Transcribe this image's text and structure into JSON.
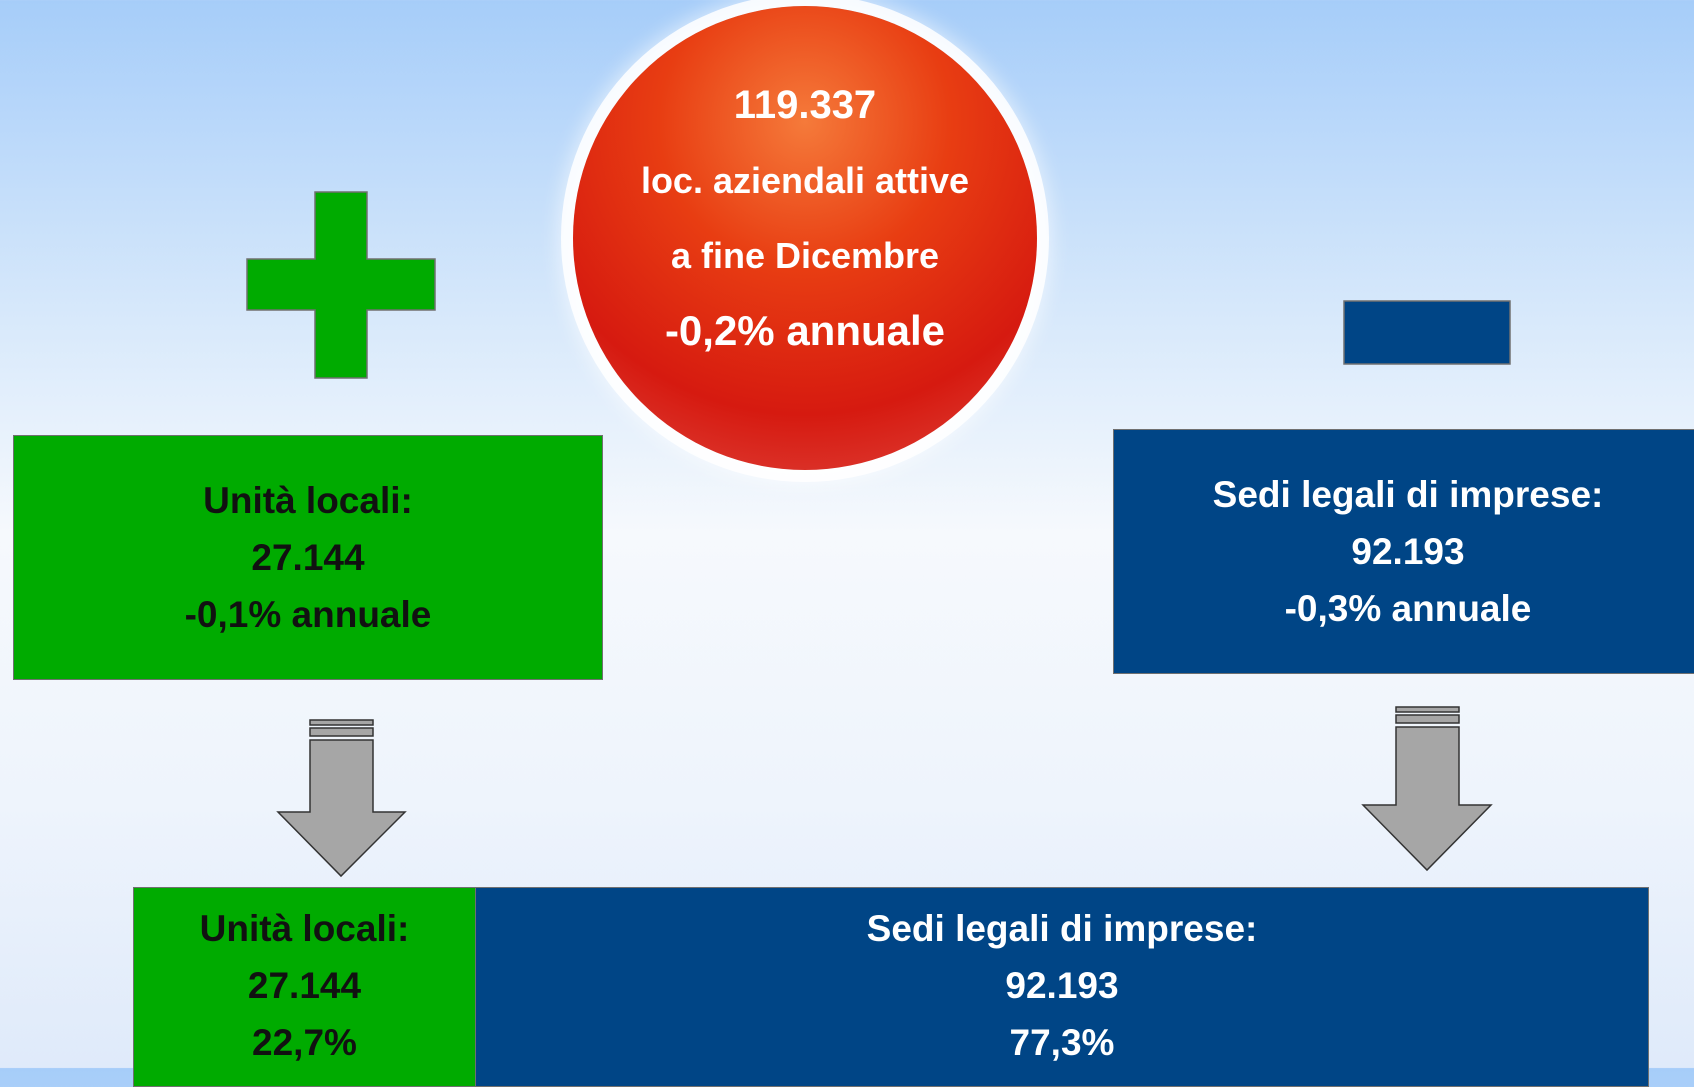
{
  "circle": {
    "lines": [
      "119.337",
      "loc. aziendali attive",
      "a fine Dicembre",
      "-0,2% annuale"
    ]
  },
  "left_box": {
    "lines": [
      "Unità locali:",
      "27.144",
      "-0,1% annuale"
    ]
  },
  "right_box": {
    "lines": [
      "Sedi legali di imprese:",
      "92.193",
      "-0,3% annuale"
    ]
  },
  "bottom_left": {
    "lines": [
      "Unità locali:",
      "27.144",
      "22,7%"
    ]
  },
  "bottom_right": {
    "lines": [
      "Sedi legali di imprese:",
      "92.193",
      "77,3%"
    ]
  }
}
